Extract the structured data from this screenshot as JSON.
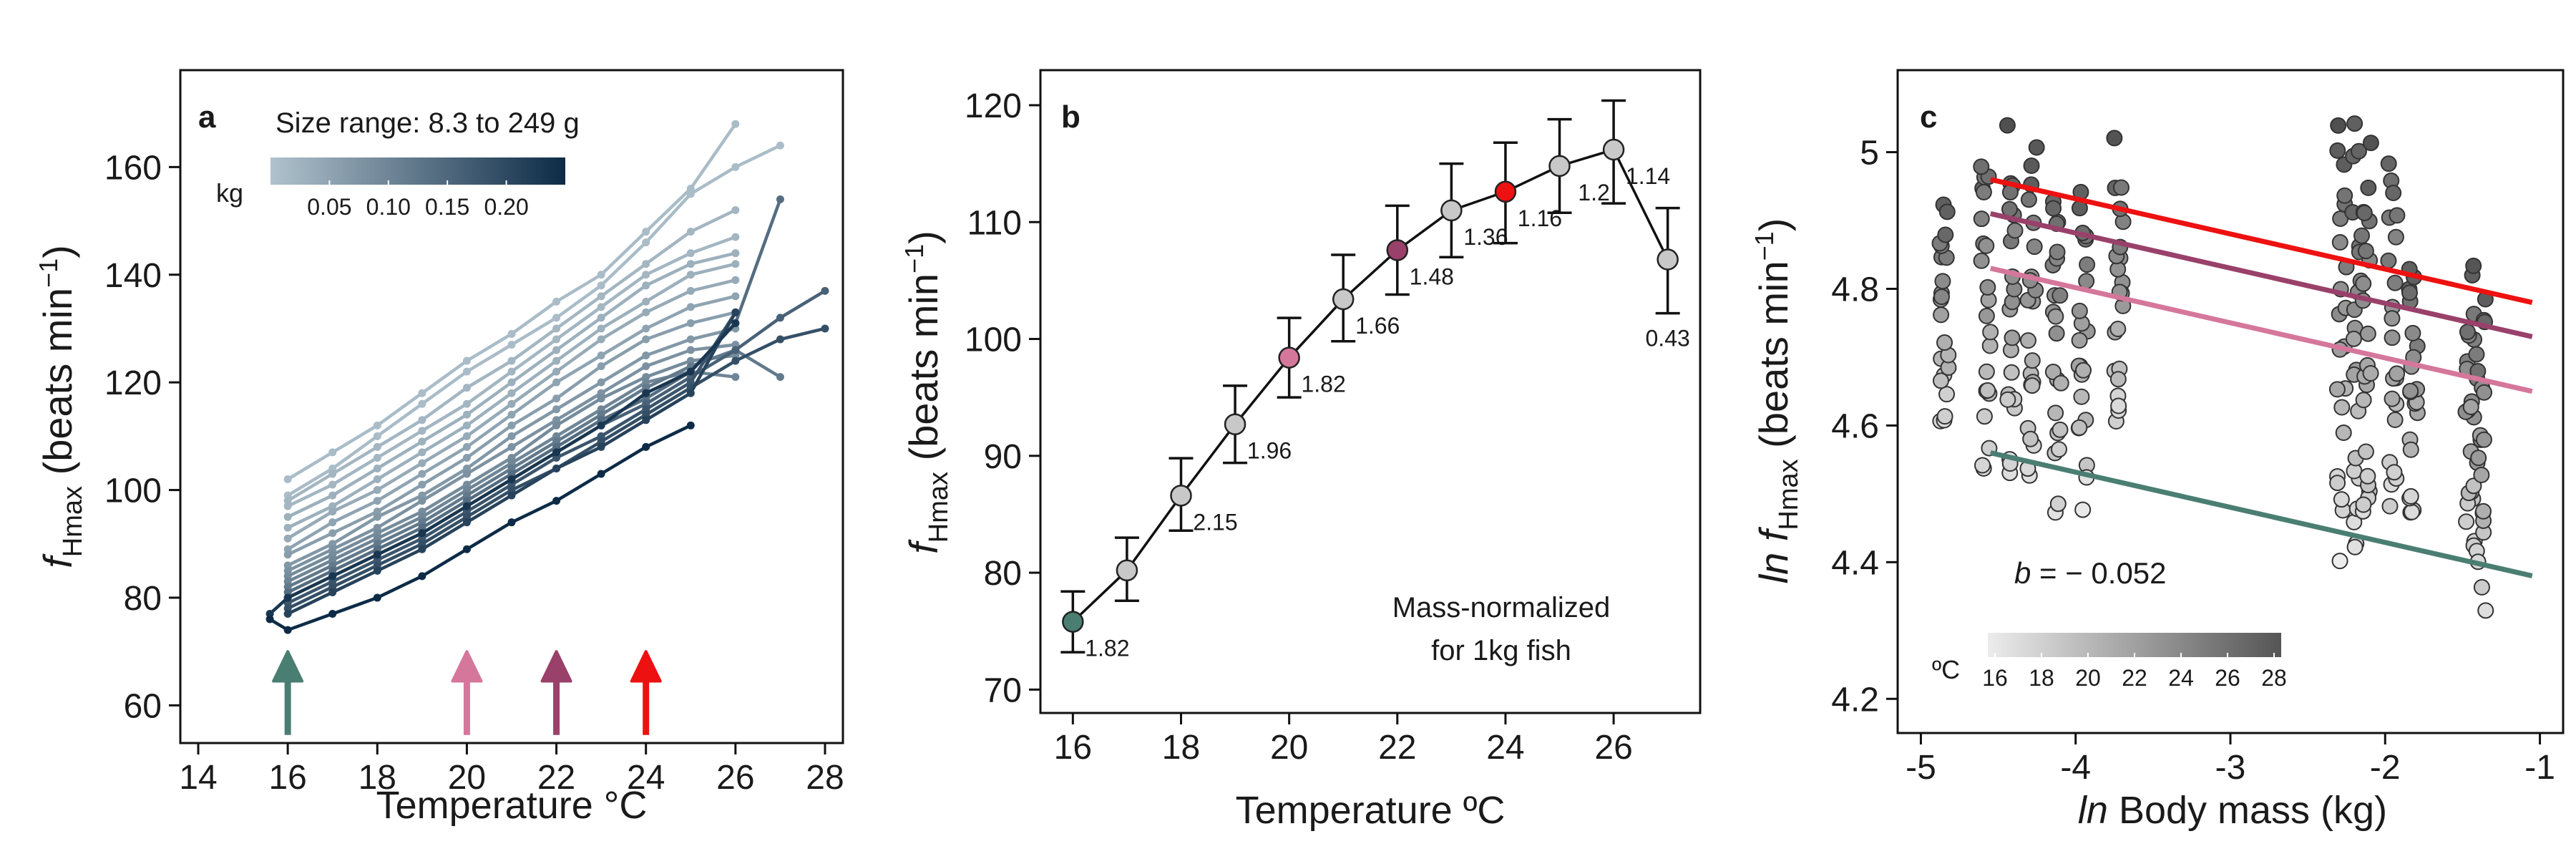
{
  "panel_a": {
    "letter": "a",
    "legend_title": "Size range: 8.3 to 249 g",
    "legend_unit": "kg",
    "legend_ticks": [
      "0.05",
      "0.10",
      "0.15",
      "0.20"
    ],
    "legend_colors": [
      "#b0c2cd",
      "#0d2b46"
    ],
    "ylabel_main": "f",
    "ylabel_sub": "Hmax",
    "ylabel_rest": " (beats min",
    "ylabel_sup": "−1",
    "ylabel_end": ")",
    "xlabel": "Temperature °C",
    "arrows": [
      {
        "x": 16,
        "color": "#4a7e73"
      },
      {
        "x": 20,
        "color": "#d5779b"
      },
      {
        "x": 22,
        "color": "#99416a"
      },
      {
        "x": 24,
        "color": "#ee1111"
      }
    ]
  },
  "panel_b": {
    "letter": "b",
    "ylabel_main": "f",
    "ylabel_sub": "Hmax",
    "ylabel_rest": " (beats min",
    "ylabel_sup": "−1",
    "ylabel_end": ")",
    "xlabel": "Temperature ºC",
    "note_line1": "Mass-normalized",
    "note_line2": "for 1kg fish"
  },
  "panel_c": {
    "letter": "c",
    "ylabel_ln": "ln",
    "ylabel_main": " f",
    "ylabel_sub": "Hmax",
    "ylabel_rest": " (beats min",
    "ylabel_sup": "−1",
    "ylabel_end": ")",
    "xlabel_ln": "ln",
    "xlabel_rest": " Body mass (kg)",
    "slope_b": "b",
    "slope_text": " = − 0.052",
    "legend_unit": "ºC",
    "legend_ticks": [
      "16",
      "18",
      "20",
      "22",
      "24",
      "26",
      "28"
    ],
    "legend_colors": [
      "#ececec",
      "#555555"
    ]
  },
  "chart_data": [
    {
      "type": "line",
      "panel": "a",
      "xlabel": "Temperature °C",
      "ylabel": "fHmax (beats min−1)",
      "xlim": [
        13.6,
        28.4
      ],
      "ylim": [
        53,
        178
      ],
      "xticks": [
        14,
        16,
        18,
        20,
        22,
        24,
        26,
        28
      ],
      "yticks": [
        60,
        80,
        100,
        120,
        140,
        160
      ],
      "series": [
        {
          "mass": 0.01,
          "x": [
            16,
            17,
            18,
            19,
            20,
            21,
            22,
            23,
            24,
            25,
            26
          ],
          "y": [
            102,
            107,
            112,
            118,
            124,
            129,
            135,
            140,
            148,
            156,
            168
          ]
        },
        {
          "mass": 0.01,
          "x": [
            16,
            17,
            18,
            19,
            20,
            21,
            22,
            23,
            24,
            25,
            26,
            27
          ],
          "y": [
            99,
            104,
            110,
            116,
            122,
            127,
            132,
            138,
            146,
            155,
            160,
            164
          ]
        },
        {
          "mass": 0.02,
          "x": [
            16,
            17,
            18,
            19,
            20,
            21,
            22,
            23,
            24,
            25,
            26
          ],
          "y": [
            98,
            103,
            108,
            113,
            119,
            124,
            130,
            136,
            142,
            148,
            152
          ]
        },
        {
          "mass": 0.02,
          "x": [
            16,
            17,
            18,
            19,
            20,
            21,
            22,
            23,
            24,
            25,
            26
          ],
          "y": [
            97,
            101,
            106,
            111,
            116,
            122,
            128,
            134,
            140,
            144,
            147
          ]
        },
        {
          "mass": 0.03,
          "x": [
            16,
            17,
            18,
            19,
            20,
            21,
            22,
            23,
            24,
            25,
            26
          ],
          "y": [
            95,
            99,
            104,
            109,
            114,
            120,
            126,
            132,
            138,
            142,
            144
          ]
        },
        {
          "mass": 0.03,
          "x": [
            16,
            17,
            18,
            19,
            20,
            21,
            22,
            23,
            24,
            25,
            26
          ],
          "y": [
            93,
            97,
            102,
            107,
            112,
            118,
            124,
            130,
            135,
            140,
            142
          ]
        },
        {
          "mass": 0.04,
          "x": [
            16,
            17,
            18,
            19,
            20,
            21,
            22,
            23,
            24,
            25,
            26
          ],
          "y": [
            91,
            96,
            100,
            105,
            110,
            116,
            122,
            128,
            133,
            137,
            139
          ]
        },
        {
          "mass": 0.05,
          "x": [
            16,
            17,
            18,
            19,
            20,
            21,
            22,
            23,
            24,
            25,
            26
          ],
          "y": [
            89,
            94,
            98,
            103,
            108,
            114,
            120,
            125,
            130,
            134,
            136
          ]
        },
        {
          "mass": 0.06,
          "x": [
            16,
            17,
            18,
            19,
            20,
            21,
            22,
            23,
            24,
            25,
            26
          ],
          "y": [
            88,
            92,
            96,
            101,
            106,
            112,
            117,
            123,
            128,
            131,
            133
          ]
        },
        {
          "mass": 0.07,
          "x": [
            16,
            17,
            18,
            19,
            20,
            21,
            22,
            23,
            24,
            25,
            26
          ],
          "y": [
            86,
            90,
            95,
            99,
            104,
            110,
            115,
            120,
            125,
            128,
            130
          ]
        },
        {
          "mass": 0.08,
          "x": [
            16,
            17,
            18,
            19,
            20,
            21,
            22,
            23,
            24,
            25,
            26
          ],
          "y": [
            85,
            89,
            93,
            98,
            103,
            108,
            113,
            118,
            123,
            126,
            127
          ]
        },
        {
          "mass": 0.09,
          "x": [
            16,
            17,
            18,
            19,
            20,
            21,
            22,
            23,
            24,
            25,
            26
          ],
          "y": [
            84,
            88,
            92,
            96,
            101,
            106,
            112,
            117,
            121,
            124,
            125
          ]
        },
        {
          "mass": 0.1,
          "x": [
            16,
            17,
            18,
            19,
            20,
            21,
            22,
            23,
            24,
            25,
            26
          ],
          "y": [
            83,
            87,
            91,
            95,
            100,
            105,
            110,
            115,
            120,
            122,
            121
          ]
        },
        {
          "mass": 0.12,
          "x": [
            16,
            17,
            18,
            19,
            20,
            21,
            22,
            23,
            24,
            25,
            26,
            27
          ],
          "y": [
            82,
            86,
            90,
            94,
            99,
            104,
            109,
            114,
            119,
            123,
            126,
            121
          ]
        },
        {
          "mass": 0.14,
          "x": [
            16,
            17,
            18,
            19,
            20,
            21,
            22,
            23,
            24,
            25,
            26,
            27
          ],
          "y": [
            81,
            85,
            89,
            93,
            98,
            103,
            108,
            113,
            117,
            122,
            131,
            154
          ]
        },
        {
          "mass": 0.16,
          "x": [
            16,
            17,
            18,
            19,
            20,
            21,
            22,
            23,
            24,
            25,
            26,
            27,
            28
          ],
          "y": [
            80,
            84,
            88,
            92,
            97,
            102,
            107,
            112,
            116,
            121,
            126,
            132,
            137
          ]
        },
        {
          "mass": 0.18,
          "x": [
            16,
            17,
            18,
            19,
            20,
            21,
            22,
            23,
            24,
            25,
            26
          ],
          "y": [
            79,
            83,
            87,
            91,
            96,
            101,
            106,
            110,
            115,
            120,
            133
          ]
        },
        {
          "mass": 0.19,
          "x": [
            16,
            17,
            18,
            19,
            20,
            21,
            22,
            23,
            24,
            25,
            26,
            27,
            28
          ],
          "y": [
            78,
            82,
            86,
            90,
            95,
            100,
            104,
            109,
            114,
            119,
            124,
            128,
            130
          ]
        },
        {
          "mass": 0.21,
          "x": [
            16,
            17,
            18,
            19,
            20,
            21,
            22,
            23,
            24,
            25,
            26
          ],
          "y": [
            77,
            81,
            85,
            89,
            94,
            99,
            104,
            108,
            113,
            118,
            133
          ]
        },
        {
          "mass": 0.23,
          "x": [
            15.6,
            16,
            17,
            18,
            19,
            20,
            21,
            22,
            23,
            24,
            25,
            26
          ],
          "y": [
            77,
            80,
            84,
            88,
            92,
            97,
            102,
            107,
            112,
            118,
            122,
            131
          ]
        },
        {
          "mass": 0.25,
          "x": [
            15.6,
            16,
            17,
            18,
            19,
            20,
            21,
            22,
            23,
            24,
            25
          ],
          "y": [
            76,
            74,
            77,
            80,
            84,
            89,
            94,
            98,
            103,
            108,
            112
          ]
        }
      ]
    },
    {
      "type": "line",
      "panel": "b",
      "xlabel": "Temperature ºC",
      "ylabel": "fHmax (beats min−1)",
      "xlim": [
        15.4,
        27.6
      ],
      "ylim": [
        68,
        123
      ],
      "xticks": [
        16,
        18,
        20,
        22,
        24,
        26
      ],
      "yticks": [
        70,
        80,
        90,
        100,
        110,
        120
      ],
      "x": [
        16,
        17,
        18,
        19,
        20,
        21,
        22,
        23,
        24,
        25,
        26,
        27
      ],
      "y": [
        75.8,
        80.2,
        86.6,
        92.7,
        98.4,
        103.4,
        107.6,
        111.0,
        112.6,
        114.8,
        116.2,
        106.8
      ],
      "err_low": [
        73.2,
        77.6,
        83.6,
        89.4,
        95.0,
        99.8,
        103.8,
        107.0,
        108.2,
        110.8,
        111.6,
        102.2
      ],
      "err_high": [
        78.4,
        83.0,
        89.8,
        96.0,
        101.8,
        107.2,
        111.4,
        115.0,
        116.8,
        118.8,
        120.4,
        111.2
      ],
      "point_labels": [
        "1.82",
        "",
        "2.15",
        "1.96",
        "1.82",
        "1.66",
        "1.48",
        "1.36",
        "1.16",
        "1.2",
        "1.14",
        "0.43"
      ],
      "point_colors": [
        "#4a7e73",
        "#c8c8c8",
        "#c8c8c8",
        "#c8c8c8",
        "#d5779b",
        "#c8c8c8",
        "#99416a",
        "#c8c8c8",
        "#ee1111",
        "#c8c8c8",
        "#c8c8c8",
        "#c8c8c8"
      ]
    },
    {
      "type": "scatter",
      "panel": "c",
      "xlabel": "ln Body mass (kg)",
      "ylabel": "ln fHmax (beats min−1)",
      "xlim": [
        -5.15,
        -0.85
      ],
      "ylim": [
        4.15,
        5.12
      ],
      "xticks": [
        -5,
        -4,
        -3,
        -2,
        -1
      ],
      "yticks": [
        4.2,
        4.4,
        4.6,
        4.8,
        5.0
      ],
      "mass_columns": [
        -4.85,
        -4.58,
        -4.42,
        -4.28,
        -4.12,
        -3.95,
        -3.72,
        -2.28,
        -2.18,
        -2.12,
        -1.95,
        -1.82,
        -1.45,
        -1.38
      ],
      "column_ranges": [
        [
          4.58,
          4.94
        ],
        [
          4.5,
          5.05
        ],
        [
          4.5,
          5.04
        ],
        [
          4.47,
          5.03
        ],
        [
          4.45,
          5.0
        ],
        [
          4.47,
          4.98
        ],
        [
          4.55,
          5.03
        ],
        [
          4.4,
          5.06
        ],
        [
          4.38,
          5.05
        ],
        [
          4.4,
          5.02
        ],
        [
          4.42,
          5.03
        ],
        [
          4.42,
          4.88
        ],
        [
          4.38,
          4.84
        ],
        [
          4.31,
          4.82
        ]
      ],
      "regression_slope": -0.052,
      "regression_lines": [
        {
          "temp": 16,
          "color": "#4a7e73",
          "y_at_x": [
            [
              -4.55,
              4.56
            ],
            [
              -1.05,
              4.38
            ]
          ]
        },
        {
          "temp": 20,
          "color": "#d5779b",
          "y_at_x": [
            [
              -4.55,
              4.83
            ],
            [
              -1.05,
              4.65
            ]
          ]
        },
        {
          "temp": 22,
          "color": "#99416a",
          "y_at_x": [
            [
              -4.55,
              4.91
            ],
            [
              -1.05,
              4.73
            ]
          ]
        },
        {
          "temp": 24,
          "color": "#ee1111",
          "y_at_x": [
            [
              -4.55,
              4.96
            ],
            [
              -1.05,
              4.78
            ]
          ]
        }
      ]
    }
  ]
}
